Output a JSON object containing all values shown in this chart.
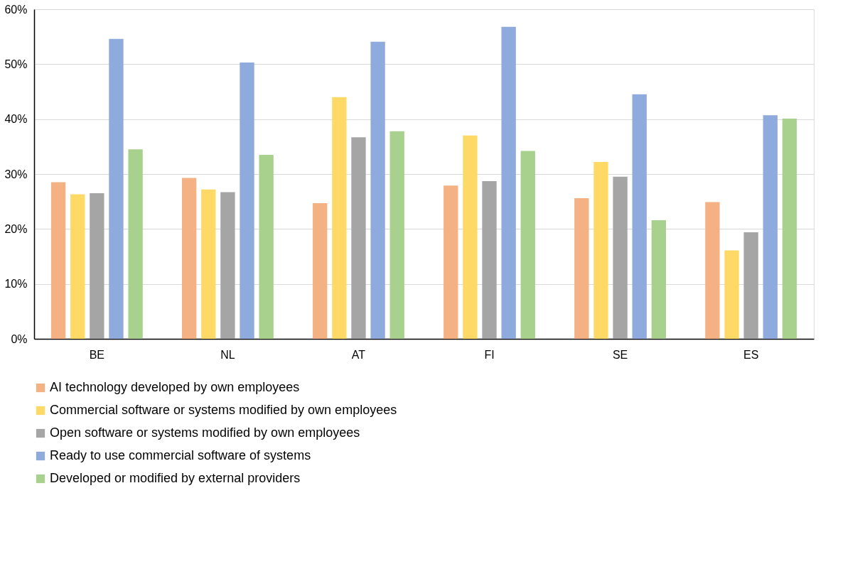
{
  "chart_data": {
    "type": "bar",
    "categories": [
      "BE",
      "NL",
      "AT",
      "FI",
      "SE",
      "ES"
    ],
    "series": [
      {
        "name": "AI technology developed by own employees",
        "color": "#f4b183",
        "values": [
          28.5,
          29.3,
          24.7,
          27.9,
          25.6,
          24.9
        ]
      },
      {
        "name": "Commercial software or systems modified by own employees",
        "color": "#ffd966",
        "values": [
          26.3,
          27.2,
          44.0,
          37.0,
          32.2,
          16.1
        ]
      },
      {
        "name": "Open software or systems modified by own employees",
        "color": "#a5a5a5",
        "values": [
          26.5,
          26.7,
          36.7,
          28.7,
          29.5,
          19.4
        ]
      },
      {
        "name": "Ready to use commercial software of systems",
        "color": "#8faadc",
        "values": [
          54.6,
          50.3,
          54.1,
          56.8,
          44.5,
          40.7
        ]
      },
      {
        "name": "Developed or modified by external providers",
        "color": "#a9d18e",
        "values": [
          34.5,
          33.5,
          37.8,
          34.2,
          21.6,
          40.1
        ]
      }
    ],
    "ylim": [
      0,
      60
    ],
    "yticks": [
      {
        "value": 0,
        "label": "0%"
      },
      {
        "value": 10,
        "label": "10%"
      },
      {
        "value": 20,
        "label": "20%"
      },
      {
        "value": 30,
        "label": "30%"
      },
      {
        "value": 40,
        "label": "40%"
      },
      {
        "value": 50,
        "label": "50%"
      },
      {
        "value": 60,
        "label": "60%"
      }
    ],
    "grid": "y",
    "legend": "bottom"
  }
}
